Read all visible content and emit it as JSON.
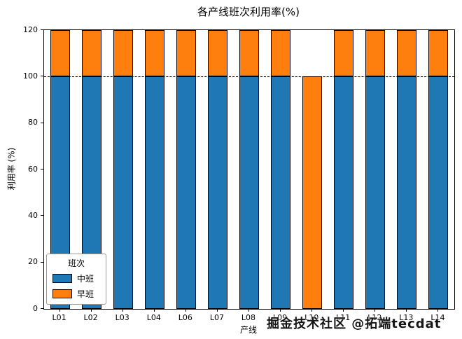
{
  "title": "各产线班次利用率(%)",
  "watermark": "掘金技术社区 @拓端tecdat",
  "chart_data": {
    "type": "bar",
    "stacked": true,
    "title": "各产线班次利用率(%)",
    "xlabel": "产线",
    "ylabel": "利用率 (%)",
    "ylim": [
      0,
      120
    ],
    "yticks": [
      0,
      20,
      40,
      60,
      80,
      100,
      120
    ],
    "categories": [
      "L01",
      "L02",
      "L03",
      "L04",
      "L06",
      "L07",
      "L08",
      "L09",
      "L10",
      "L11",
      "L12",
      "L13",
      "L14"
    ],
    "series": [
      {
        "name": "中班",
        "color": "#1f77b4",
        "values": [
          100,
          100,
          100,
          100,
          100,
          100,
          100,
          100,
          0,
          100,
          100,
          100,
          100
        ]
      },
      {
        "name": "早班",
        "color": "#ff7f0e",
        "values": [
          20,
          20,
          20,
          20,
          20,
          20,
          20,
          20,
          100,
          20,
          20,
          20,
          20
        ]
      }
    ],
    "reference_line": {
      "y": 100,
      "style": "dashed",
      "color": "#000000"
    },
    "legend": {
      "title": "班次",
      "position": "lower left"
    },
    "grid": false,
    "bar_edge_color": "#000000"
  }
}
